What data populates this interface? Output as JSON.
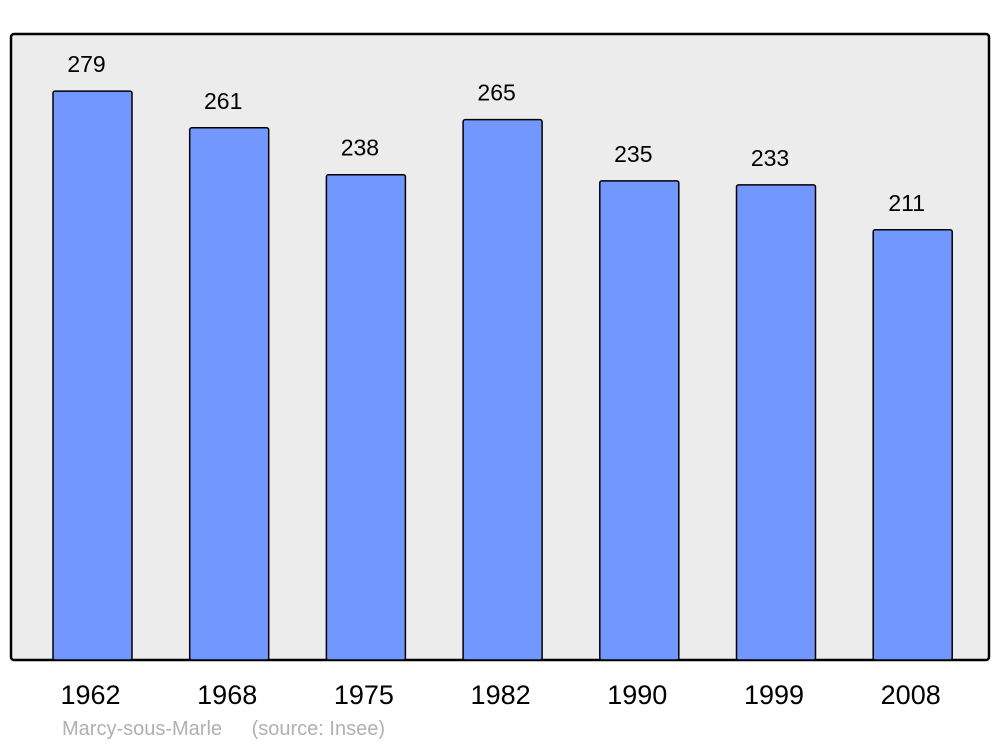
{
  "chart_data": {
    "type": "bar",
    "categories": [
      "1962",
      "1968",
      "1975",
      "1982",
      "1990",
      "1999",
      "2008"
    ],
    "values": [
      279,
      261,
      238,
      265,
      235,
      233,
      211
    ],
    "title": "",
    "xlabel": "",
    "ylabel": "",
    "ylim": [
      0,
      307
    ],
    "grid": false,
    "data_labels": true,
    "colors": {
      "bar": "#7298ff",
      "plot_background": "#ececec",
      "border": "#000000"
    }
  },
  "footer": {
    "place": "Marcy-sous-Marle",
    "source": "(source: Insee)"
  }
}
